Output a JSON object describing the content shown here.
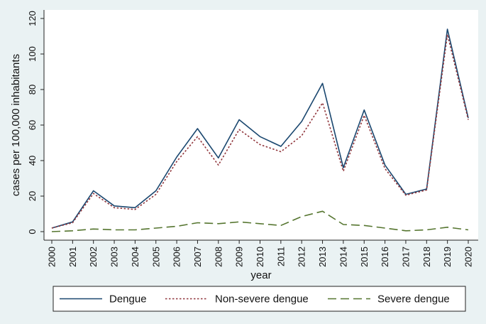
{
  "chart_data": {
    "type": "line",
    "title": "",
    "xlabel": "year",
    "ylabel": "cases per 100,000 inhabitants",
    "ylim": [
      0,
      120
    ],
    "yticks": [
      0,
      20,
      40,
      60,
      80,
      100,
      120
    ],
    "grid": false,
    "legend_position": "bottom",
    "categories": [
      "2000",
      "2001",
      "2002",
      "2003",
      "2004",
      "2005",
      "2006",
      "2007",
      "2008",
      "2009",
      "2010",
      "2011",
      "2012",
      "2013",
      "2014",
      "2015",
      "2016",
      "2017",
      "2018",
      "2019",
      "2020"
    ],
    "series": [
      {
        "name": "Dengue",
        "color": "#1a476f",
        "dash": "solid",
        "values": [
          2,
          5.5,
          23,
          14.5,
          13.5,
          23,
          42,
          58,
          41.5,
          63,
          53.5,
          48,
          62,
          83.5,
          36,
          68.5,
          37.5,
          21,
          24,
          114,
          64
        ]
      },
      {
        "name": "Non-severe dengue",
        "color": "#90353b",
        "dash": "dot",
        "values": [
          2,
          5,
          21.5,
          13.5,
          12.5,
          21,
          39.5,
          53.5,
          37.5,
          57.5,
          49,
          45,
          54,
          72.5,
          34,
          65.5,
          35.5,
          20.5,
          23.5,
          111,
          63
        ]
      },
      {
        "name": "Severe dengue",
        "color": "#55752f",
        "dash": "longdash",
        "values": [
          0,
          0.5,
          1.5,
          1,
          1,
          2,
          3,
          5,
          4.5,
          5.5,
          4.5,
          3.5,
          8.5,
          11.5,
          4,
          3.5,
          2,
          0.5,
          1,
          2.5,
          1
        ]
      }
    ]
  }
}
